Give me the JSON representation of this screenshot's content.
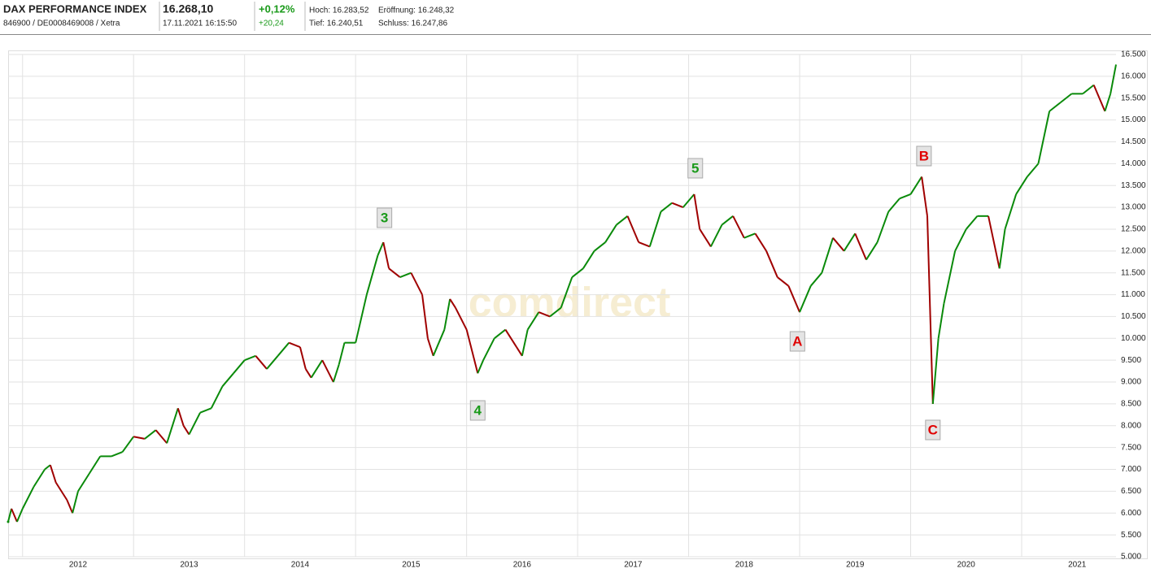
{
  "header": {
    "title": "DAX PERFORMANCE INDEX",
    "ids": "846900 / DE0008469008 / Xetra",
    "price": "16.268,10",
    "timestamp": "17.11.2021 16:15:50",
    "change_pct": "+0,12%",
    "change_abs": "+20,24",
    "high": "Hoch: 16.283,52",
    "open": "Eröffnung: 16.248,32",
    "low": "Tief: 16.240,51",
    "close": "Schluss: 16.247,86"
  },
  "chart_data": {
    "type": "line",
    "watermark": "comdirect",
    "up_color": "#0a8a0a",
    "down_color": "#a00000",
    "grid": true,
    "x": [
      2011.87,
      2011.9,
      2011.95,
      2012.0,
      2012.1,
      2012.2,
      2012.25,
      2012.3,
      2012.4,
      2012.45,
      2012.5,
      2012.6,
      2012.7,
      2012.8,
      2012.9,
      2013.0,
      2013.1,
      2013.2,
      2013.3,
      2013.4,
      2013.45,
      2013.5,
      2013.6,
      2013.7,
      2013.8,
      2013.9,
      2014.0,
      2014.1,
      2014.2,
      2014.3,
      2014.4,
      2014.5,
      2014.55,
      2014.6,
      2014.7,
      2014.8,
      2014.85,
      2014.9,
      2015.0,
      2015.1,
      2015.2,
      2015.25,
      2015.3,
      2015.4,
      2015.5,
      2015.6,
      2015.65,
      2015.7,
      2015.8,
      2015.85,
      2015.9,
      2016.0,
      2016.1,
      2016.15,
      2016.25,
      2016.35,
      2016.45,
      2016.5,
      2016.55,
      2016.65,
      2016.75,
      2016.85,
      2016.95,
      2017.05,
      2017.15,
      2017.25,
      2017.35,
      2017.45,
      2017.55,
      2017.65,
      2017.75,
      2017.85,
      2017.95,
      2018.05,
      2018.1,
      2018.2,
      2018.3,
      2018.4,
      2018.5,
      2018.6,
      2018.7,
      2018.8,
      2018.9,
      2019.0,
      2019.1,
      2019.2,
      2019.3,
      2019.4,
      2019.5,
      2019.6,
      2019.7,
      2019.8,
      2019.9,
      2020.0,
      2020.1,
      2020.15,
      2020.2,
      2020.25,
      2020.3,
      2020.4,
      2020.5,
      2020.6,
      2020.7,
      2020.8,
      2020.85,
      2020.95,
      2021.05,
      2021.15,
      2021.25,
      2021.35,
      2021.45,
      2021.55,
      2021.65,
      2021.7,
      2021.75,
      2021.8,
      2021.85
    ],
    "values": [
      5800,
      6100,
      5800,
      6100,
      6600,
      7000,
      7100,
      6700,
      6300,
      6000,
      6500,
      6900,
      7300,
      7300,
      7400,
      7750,
      7700,
      7900,
      7600,
      8400,
      8000,
      7800,
      8300,
      8400,
      8900,
      9200,
      9500,
      9600,
      9300,
      9600,
      9900,
      9800,
      9300,
      9100,
      9500,
      9000,
      9400,
      9900,
      9900,
      11000,
      11900,
      12200,
      11600,
      11400,
      11500,
      11000,
      10000,
      9600,
      10200,
      10900,
      10700,
      10200,
      9200,
      9500,
      10000,
      10200,
      9800,
      9600,
      10200,
      10600,
      10500,
      10700,
      11400,
      11600,
      12000,
      12200,
      12600,
      12800,
      12200,
      12100,
      12900,
      13100,
      13000,
      13300,
      12500,
      12100,
      12600,
      12800,
      12300,
      12400,
      12000,
      11400,
      11200,
      10600,
      11200,
      11500,
      12300,
      12000,
      12400,
      11800,
      12200,
      12900,
      13200,
      13300,
      13700,
      12800,
      8500,
      10000,
      10800,
      12000,
      12500,
      12800,
      12800,
      11600,
      12500,
      13300,
      13700,
      14000,
      15200,
      15400,
      15600,
      15600,
      15800,
      15500,
      15200,
      15600,
      16268.1
    ],
    "xlim": [
      2011.87,
      2021.85
    ],
    "xticks": [
      {
        "value": 2012,
        "label": "2012"
      },
      {
        "value": 2013,
        "label": "2013"
      },
      {
        "value": 2014,
        "label": "2014"
      },
      {
        "value": 2015,
        "label": "2015"
      },
      {
        "value": 2016,
        "label": "2016"
      },
      {
        "value": 2017,
        "label": "2017"
      },
      {
        "value": 2018,
        "label": "2018"
      },
      {
        "value": 2019,
        "label": "2019"
      },
      {
        "value": 2020,
        "label": "2020"
      },
      {
        "value": 2021,
        "label": "2021"
      }
    ],
    "ylim": [
      5000,
      16500
    ],
    "yticks": [
      {
        "value": 5000,
        "label": "5.000"
      },
      {
        "value": 5500,
        "label": "5.500"
      },
      {
        "value": 6000,
        "label": "6.000"
      },
      {
        "value": 6500,
        "label": "6.500"
      },
      {
        "value": 7000,
        "label": "7.000"
      },
      {
        "value": 7500,
        "label": "7.500"
      },
      {
        "value": 8000,
        "label": "8.000"
      },
      {
        "value": 8500,
        "label": "8.500"
      },
      {
        "value": 9000,
        "label": "9.000"
      },
      {
        "value": 9500,
        "label": "9.500"
      },
      {
        "value": 10000,
        "label": "10.000"
      },
      {
        "value": 10500,
        "label": "10.500"
      },
      {
        "value": 11000,
        "label": "11.000"
      },
      {
        "value": 11500,
        "label": "11.500"
      },
      {
        "value": 12000,
        "label": "12.000"
      },
      {
        "value": 12500,
        "label": "12.500"
      },
      {
        "value": 13000,
        "label": "13.000"
      },
      {
        "value": 13500,
        "label": "13.500"
      },
      {
        "value": 14000,
        "label": "14.000"
      },
      {
        "value": 14500,
        "label": "14.500"
      },
      {
        "value": 15000,
        "label": "15.000"
      },
      {
        "value": 15500,
        "label": "15.500"
      },
      {
        "value": 16000,
        "label": "16.000"
      },
      {
        "value": 16500,
        "label": "16.500"
      }
    ],
    "annotations": [
      {
        "text": "3",
        "x": 2015.26,
        "y": 12760,
        "color": "#1a9a1a"
      },
      {
        "text": "4",
        "x": 2016.1,
        "y": 8350,
        "color": "#1a9a1a"
      },
      {
        "text": "5",
        "x": 2018.06,
        "y": 13895,
        "color": "#1a9a1a"
      },
      {
        "text": "A",
        "x": 2018.98,
        "y": 9931,
        "color": "#e00000"
      },
      {
        "text": "B",
        "x": 2020.12,
        "y": 14174,
        "color": "#e00000"
      },
      {
        "text": "C",
        "x": 2020.2,
        "y": 7903,
        "color": "#e00000"
      }
    ]
  }
}
